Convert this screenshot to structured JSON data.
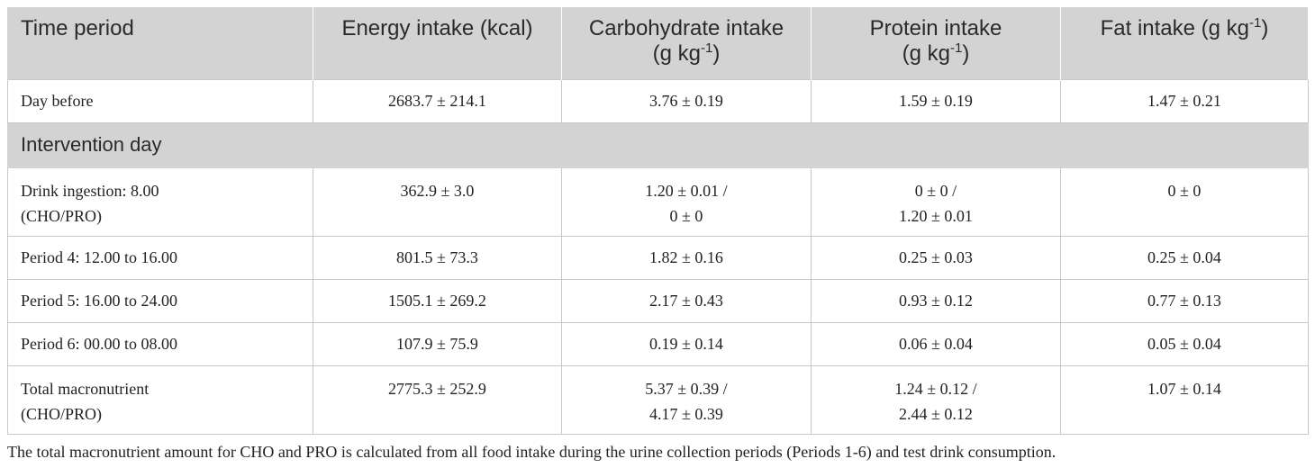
{
  "table": {
    "headers": {
      "time_period": "Time period",
      "energy": "Energy intake (kcal)",
      "carb_line1": "Carbohydrate intake",
      "carb_line2_prefix": "(g kg",
      "carb_line2_sup": "-1",
      "carb_line2_suffix": ")",
      "protein_line1": "Protein intake",
      "protein_line2_prefix": "(g kg",
      "protein_line2_sup": "-1",
      "protein_line2_suffix": ")",
      "fat_prefix": "Fat intake (g kg",
      "fat_sup": "-1",
      "fat_suffix": ")"
    },
    "rows": {
      "day_before": {
        "label": "Day before",
        "energy": "2683.7 ± 214.1",
        "carb": "3.76 ± 0.19",
        "protein": "1.59 ± 0.19",
        "fat": "1.47 ± 0.21"
      },
      "section_label": "Intervention day",
      "drink": {
        "label_line1": "Drink ingestion: 8.00",
        "label_line2": "(CHO/PRO)",
        "energy": "362.9 ± 3.0",
        "carb_line1": "1.20 ± 0.01 /",
        "carb_line2": "0 ± 0",
        "protein_line1": "0 ± 0 /",
        "protein_line2": "1.20 ± 0.01",
        "fat": "0 ± 0"
      },
      "period4": {
        "label": "Period 4: 12.00 to 16.00",
        "energy": "801.5 ± 73.3",
        "carb": "1.82 ± 0.16",
        "protein": "0.25 ± 0.03",
        "fat": "0.25 ± 0.04"
      },
      "period5": {
        "label": "Period 5: 16.00 to 24.00",
        "energy": "1505.1 ± 269.2",
        "carb": "2.17 ± 0.43",
        "protein": "0.93 ± 0.12",
        "fat": "0.77 ± 0.13"
      },
      "period6": {
        "label": "Period 6: 00.00 to 08.00",
        "energy": "107.9 ± 75.9",
        "carb": "0.19 ± 0.14",
        "protein": "0.06 ± 0.04",
        "fat": "0.05 ± 0.04"
      },
      "total": {
        "label_line1": "Total macronutrient",
        "label_line2": "(CHO/PRO)",
        "energy": "2775.3 ± 252.9",
        "carb_line1": "5.37 ± 0.39 /",
        "carb_line2": "4.17 ± 0.39",
        "protein_line1": "1.24 ± 0.12 /",
        "protein_line2": "2.44 ± 0.12",
        "fat": "1.07 ± 0.14"
      }
    }
  },
  "footnote": "The total macronutrient amount for CHO and PRO is calculated from all food intake during the urine collection periods (Periods 1-6) and test drink consumption.",
  "colors": {
    "header_background": "#d3d3d3",
    "border": "#c8c8c8",
    "text": "#222222"
  }
}
